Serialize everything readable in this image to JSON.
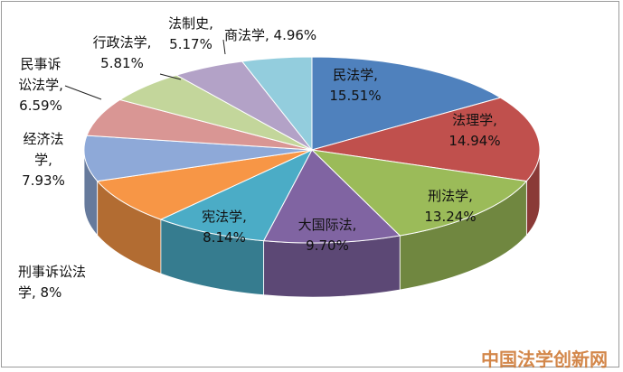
{
  "chart_data": {
    "type": "pie",
    "title": "",
    "categories": [
      "民法学",
      "法理学",
      "刑法学",
      "大国际法",
      "宪法学",
      "刑事诉讼法学",
      "经济法学",
      "民事诉讼法学",
      "行政法学",
      "法制史",
      "商法学"
    ],
    "values": [
      15.51,
      14.94,
      13.24,
      9.7,
      8.14,
      8,
      7.93,
      6.59,
      5.81,
      5.17,
      4.96
    ],
    "value_labels": [
      "15.51%",
      "14.94%",
      "13.24%",
      "9.70%",
      "8.14%",
      "8%",
      "7.93%",
      "6.59%",
      "5.81%",
      "5.17%",
      "4.96%"
    ],
    "colors": [
      "#4f81bd",
      "#c0504d",
      "#9bbb59",
      "#8064a2",
      "#4bacc6",
      "#f79646",
      "#8ea9d8",
      "#d99694",
      "#c3d69b",
      "#b3a2c7",
      "#93cddd"
    ],
    "style": "3d",
    "legend": "none"
  },
  "labels": {
    "minfa": "民法学,",
    "minfa_val": "15.51%",
    "fali": "法理学,",
    "fali_val": "14.94%",
    "xingfa": "刑法学,",
    "xingfa_val": "13.24%",
    "guoji": "大国际法,",
    "guoji_val": "9.70%",
    "xianfa": "宪法学,",
    "xianfa_val": "8.14%",
    "xingsu_1": "刑事诉讼法",
    "xingsu_2": "学, 8%",
    "jingji_1": "经济法",
    "jingji_2": "学,",
    "jingji_3": "7.93%",
    "minsu_1": "民事诉",
    "minsu_2": "讼法学,",
    "minsu_3": "6.59%",
    "xingzheng_1": "行政法学,",
    "xingzheng_2": "5.81%",
    "fazhishi_1": "法制史,",
    "fazhishi_2": "5.17%",
    "shangfa": "商法学, 4.96%"
  },
  "watermark": "中国法学创新网"
}
